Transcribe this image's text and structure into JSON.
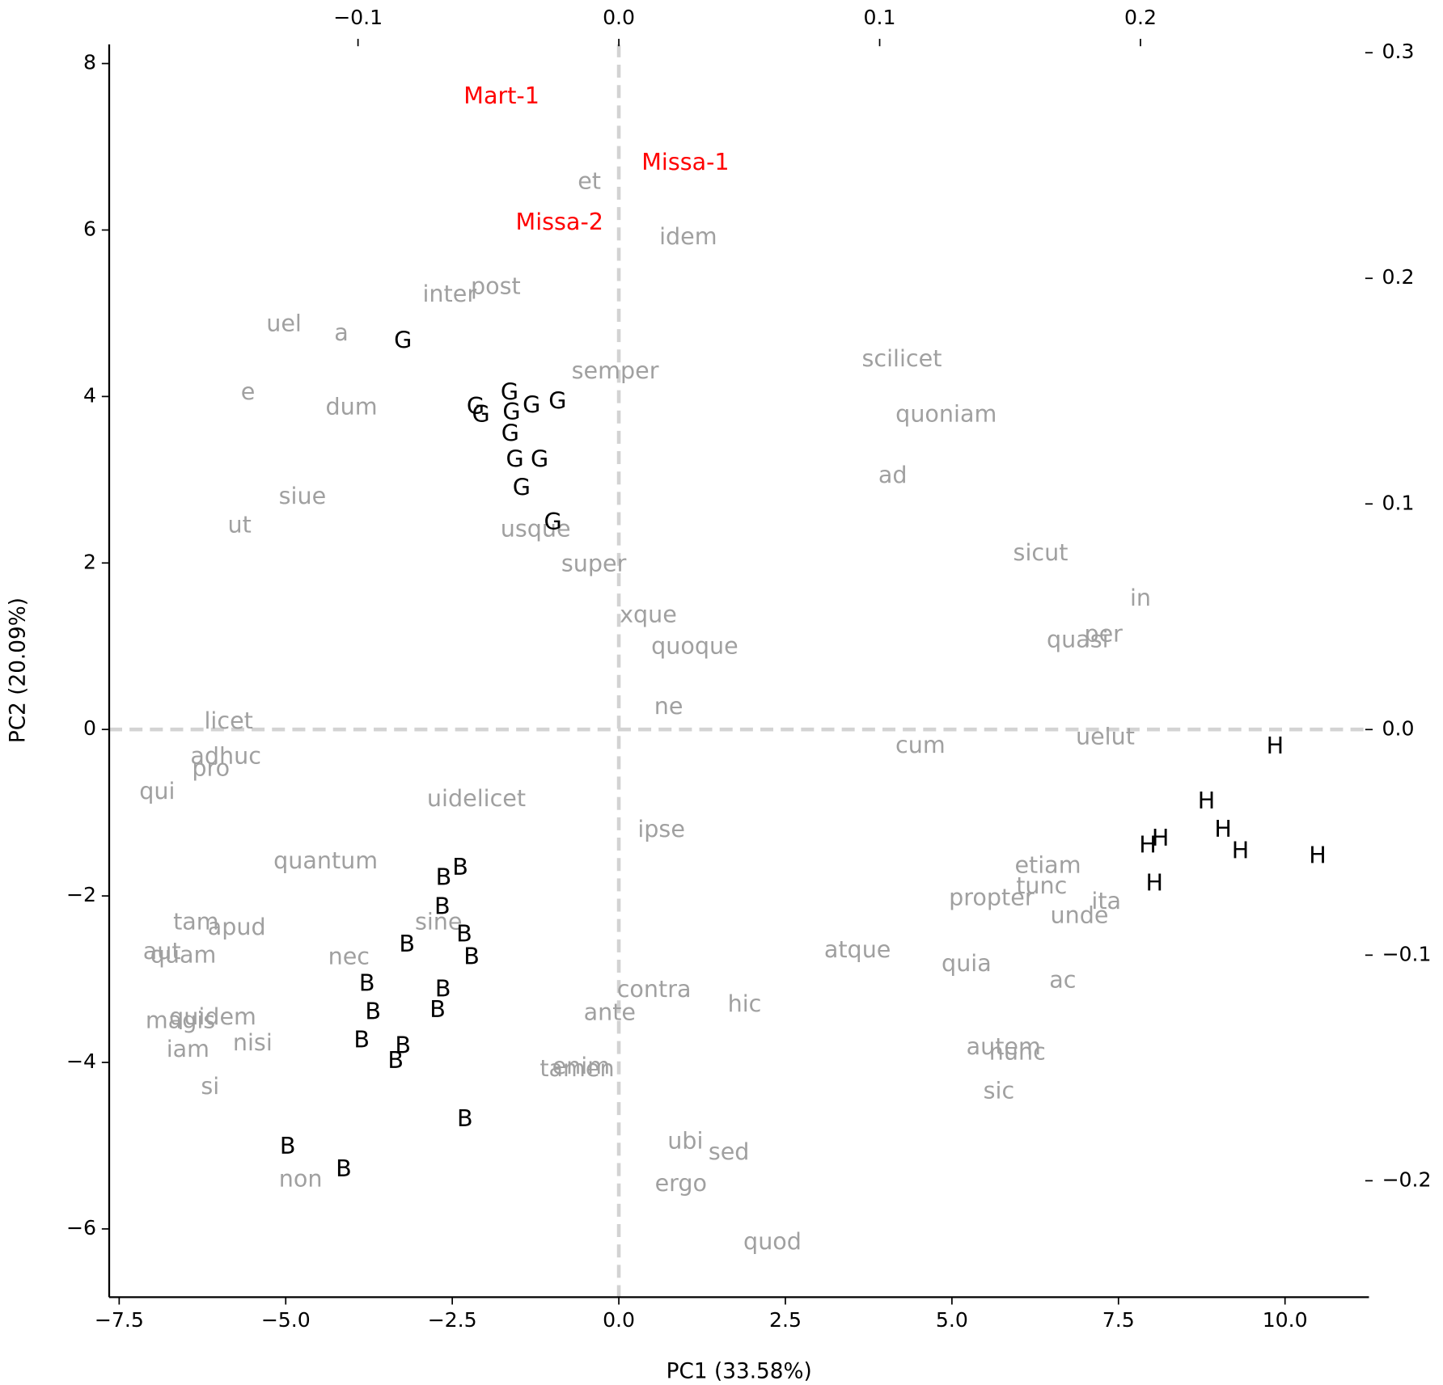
{
  "chart_data": {
    "type": "biplot",
    "xlabel": "PC1 (33.58%)",
    "ylabel": "PC2 (20.09%)",
    "xlim": [
      -7.65,
      11.26
    ],
    "ylim": [
      -6.82,
      8.23
    ],
    "xticks": [
      {
        "value": -7.5,
        "label": "−7.5"
      },
      {
        "value": -5.0,
        "label": "−5.0"
      },
      {
        "value": -2.5,
        "label": "−2.5"
      },
      {
        "value": 0.0,
        "label": "0.0"
      },
      {
        "value": 2.5,
        "label": "2.5"
      },
      {
        "value": 5.0,
        "label": "5.0"
      },
      {
        "value": 7.5,
        "label": "7.5"
      },
      {
        "value": 10.0,
        "label": "10.0"
      }
    ],
    "yticks": [
      {
        "value": -6,
        "label": "−6"
      },
      {
        "value": -4,
        "label": "−4"
      },
      {
        "value": -2,
        "label": "−2"
      },
      0,
      2,
      4,
      6,
      8
    ],
    "x2lim": [
      -0.1954,
      0.2876
    ],
    "y2lim": [
      -0.2516,
      0.3037
    ],
    "x2ticks": [
      {
        "value": -0.1,
        "label": "−0.1"
      },
      {
        "value": 0.0,
        "label": "0.0"
      },
      0.1,
      0.2
    ],
    "y2ticks": [
      {
        "value": -0.2,
        "label": "−0.2"
      },
      {
        "value": -0.1,
        "label": "−0.1"
      },
      {
        "value": 0.0,
        "label": "0.0"
      },
      0.1,
      0.2,
      0.3
    ],
    "zero_line_color": "#d3d3d3",
    "series": [
      {
        "name": "G",
        "color": "#000000",
        "x": [
          -3.24,
          -1.64,
          -2.15,
          -2.07,
          -1.61,
          -1.31,
          -0.92,
          -1.63,
          -1.56,
          -1.19,
          -1.46,
          -0.99
        ],
        "y": [
          4.66,
          4.04,
          3.87,
          3.77,
          3.8,
          3.88,
          3.93,
          3.54,
          3.23,
          3.23,
          2.89,
          2.48
        ]
      },
      {
        "name": "B",
        "color": "#000000",
        "x": [
          -2.38,
          -2.63,
          -2.65,
          -2.32,
          -3.18,
          -2.21,
          -3.78,
          -2.64,
          -3.69,
          -2.72,
          -3.86,
          -3.24,
          -3.35,
          -2.31,
          -4.97,
          -4.13
        ],
        "y": [
          -1.67,
          -1.79,
          -2.14,
          -2.47,
          -2.59,
          -2.74,
          -3.06,
          -3.13,
          -3.4,
          -3.38,
          -3.74,
          -3.81,
          -3.99,
          -4.69,
          -5.02,
          -5.29
        ]
      },
      {
        "name": "H",
        "color": "#000000",
        "x": [
          9.85,
          8.82,
          9.07,
          8.13,
          7.94,
          9.33,
          10.49,
          8.04
        ],
        "y": [
          -0.21,
          -0.87,
          -1.21,
          -1.32,
          -1.4,
          -1.47,
          -1.53,
          -1.86
        ]
      },
      {
        "name": "Mart-1",
        "color": "#ff0000",
        "x": [
          -1.76
        ],
        "y": [
          7.6
        ]
      },
      {
        "name": "Missa-1",
        "color": "#ff0000",
        "x": [
          1.0
        ],
        "y": [
          6.8
        ]
      },
      {
        "name": "Missa-2",
        "color": "#ff0000",
        "x": [
          -0.89
        ],
        "y": [
          6.08
        ]
      }
    ],
    "loadings": {
      "color": "#a0a0a0",
      "labels": [
        "et",
        "idem",
        "post",
        "inter",
        "uel",
        "a",
        "semper",
        "scilicet",
        "e",
        "dum",
        "quoniam",
        "ad",
        "siue",
        "ut",
        "usque",
        "super",
        "sicut",
        "in",
        "per",
        "quasi",
        "xque",
        "quoque",
        "ne",
        "licet",
        "cum",
        "uelut",
        "adhuc",
        "pro",
        "qui",
        "uidelicet",
        "ipse",
        "quantum",
        "etiam",
        "tunc",
        "propter",
        "ita",
        "unde",
        "tam",
        "apud",
        "sine",
        "aut",
        "quam",
        "nec",
        "atque",
        "quia",
        "ac",
        "contra",
        "hic",
        "ante",
        "quidem",
        "magis",
        "nisi",
        "iam",
        "autem",
        "nunc",
        "enim",
        "tamen",
        "si",
        "sic",
        "ubi",
        "sed",
        "non",
        "ergo",
        "quod"
      ],
      "x": [
        -0.0113,
        0.0266,
        -0.0472,
        -0.0649,
        -0.1284,
        -0.1064,
        -0.0014,
        0.1085,
        -0.1422,
        -0.1025,
        0.1255,
        0.105,
        -0.1213,
        -0.1454,
        -0.0319,
        -0.0096,
        0.1617,
        0.2,
        0.1858,
        0.1759,
        0.0113,
        0.0291,
        0.0191,
        -0.1496,
        0.1156,
        0.1865,
        -0.1507,
        -0.1564,
        -0.177,
        -0.0546,
        0.0163,
        -0.1124,
        0.1645,
        0.1621,
        0.1429,
        0.1869,
        0.1766,
        -0.1621,
        -0.1465,
        -0.0691,
        -0.1752,
        -0.167,
        -0.1035,
        0.0915,
        0.1333,
        0.1702,
        0.0135,
        0.0482,
        -0.0035,
        -0.1557,
        -0.1681,
        -0.1404,
        -0.1652,
        0.1475,
        0.1528,
        -0.0145,
        -0.016,
        -0.1567,
        0.1457,
        0.0255,
        0.0422,
        -0.122,
        0.0238,
        0.0589
      ],
      "y": [
        0.2426,
        0.218,
        0.1959,
        0.1926,
        0.1795,
        0.1754,
        0.1586,
        0.1639,
        0.1492,
        0.1426,
        0.1393,
        0.1123,
        0.1029,
        0.0902,
        0.0885,
        0.073,
        0.0779,
        0.0578,
        0.0418,
        0.0393,
        0.0504,
        0.0365,
        0.0098,
        0.0033,
        -0.0074,
        -0.0037,
        -0.0123,
        -0.0176,
        -0.0279,
        -0.0311,
        -0.0447,
        -0.0586,
        -0.0607,
        -0.0697,
        -0.075,
        -0.0766,
        -0.0828,
        -0.0857,
        -0.0881,
        -0.0857,
        -0.0988,
        -0.1004,
        -0.1012,
        -0.098,
        -0.1041,
        -0.1115,
        -0.1156,
        -0.1221,
        -0.1258,
        -0.1279,
        -0.1295,
        -0.1393,
        -0.1422,
        -0.141,
        -0.1434,
        -0.1496,
        -0.1508,
        -0.1586,
        -0.1607,
        -0.1828,
        -0.1877,
        -0.1996,
        -0.2016,
        -0.2275
      ]
    }
  }
}
